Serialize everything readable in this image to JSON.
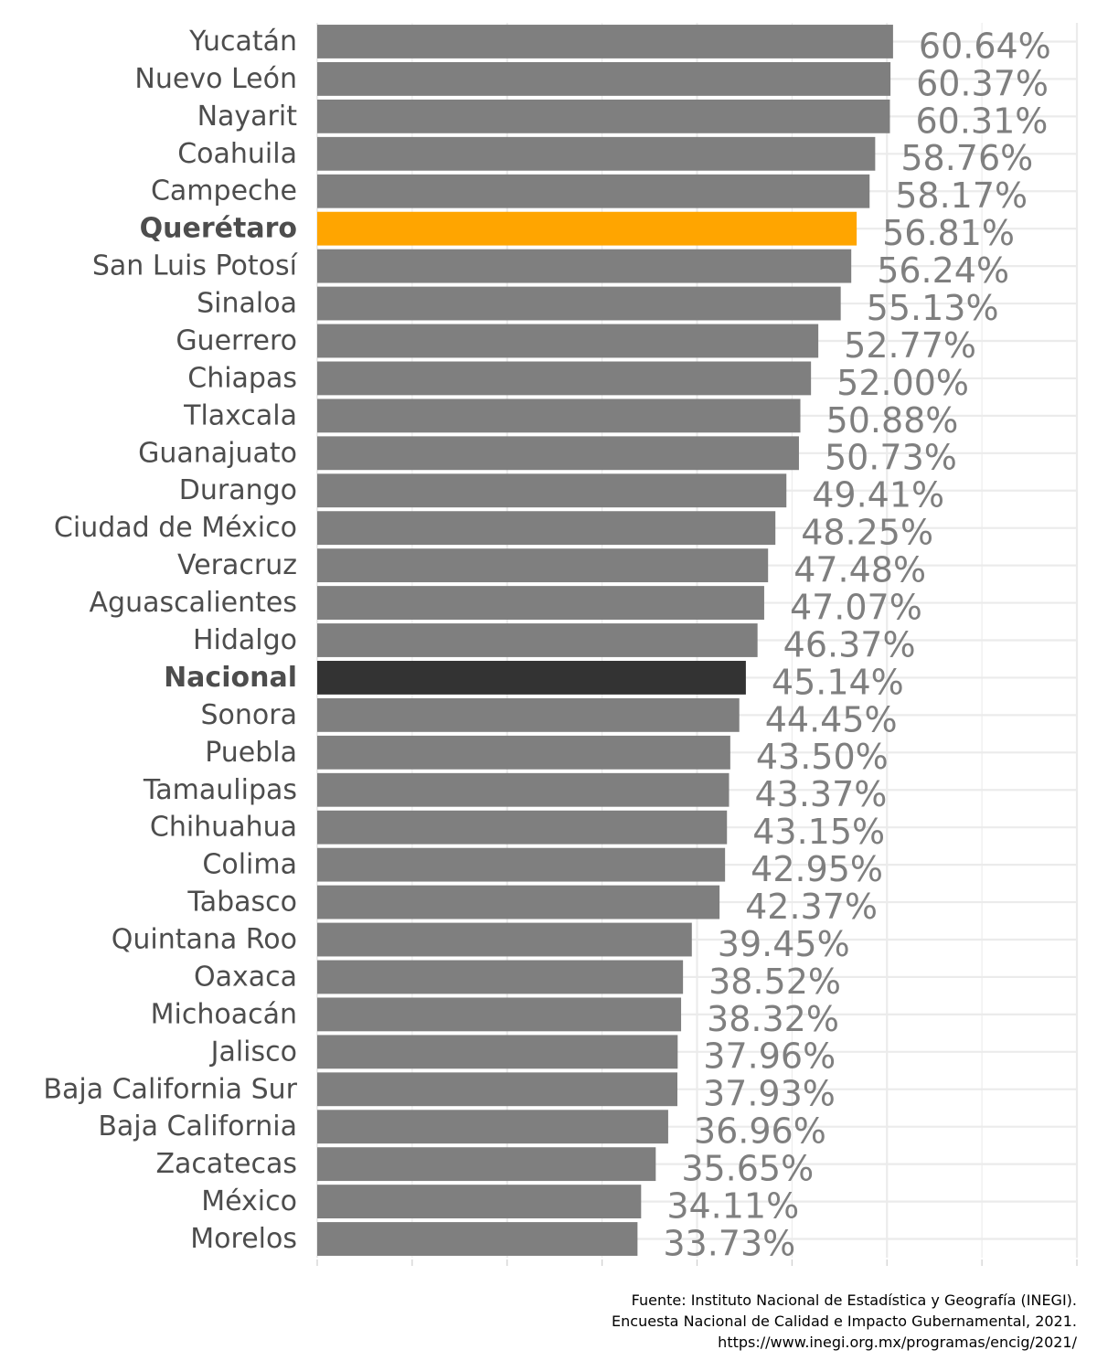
{
  "chart_data": {
    "type": "bar",
    "orientation": "horizontal",
    "value_format": "percent_2dp",
    "xlim": [
      0,
      80
    ],
    "grid": true,
    "categories": [
      "Yucatán",
      "Nuevo León",
      "Nayarit",
      "Coahuila",
      "Campeche",
      "Querétaro",
      "San Luis Potosí",
      "Sinaloa",
      "Guerrero",
      "Chiapas",
      "Tlaxcala",
      "Guanajuato",
      "Durango",
      "Ciudad de México",
      "Veracruz",
      "Aguascalientes",
      "Hidalgo",
      "Nacional",
      "Sonora",
      "Puebla",
      "Tamaulipas",
      "Chihuahua",
      "Colima",
      "Tabasco",
      "Quintana Roo",
      "Oaxaca",
      "Michoacán",
      "Jalisco",
      "Baja California Sur",
      "Baja California",
      "Zacatecas",
      "México",
      "Morelos"
    ],
    "values": [
      60.64,
      60.37,
      60.31,
      58.76,
      58.17,
      56.81,
      56.24,
      55.13,
      52.77,
      52.0,
      50.88,
      50.73,
      49.41,
      48.25,
      47.48,
      47.07,
      46.37,
      45.14,
      44.45,
      43.5,
      43.37,
      43.15,
      42.95,
      42.37,
      39.45,
      38.52,
      38.32,
      37.96,
      37.93,
      36.96,
      35.65,
      34.11,
      33.73
    ],
    "value_labels": [
      "60.64%",
      "60.37%",
      "60.31%",
      "58.76%",
      "58.17%",
      "56.81%",
      "56.24%",
      "55.13%",
      "52.77%",
      "52.00%",
      "50.88%",
      "50.73%",
      "49.41%",
      "48.25%",
      "47.48%",
      "47.07%",
      "46.37%",
      "45.14%",
      "44.45%",
      "43.50%",
      "43.37%",
      "43.15%",
      "42.95%",
      "42.37%",
      "39.45%",
      "38.52%",
      "38.32%",
      "37.96%",
      "37.93%",
      "36.96%",
      "35.65%",
      "34.11%",
      "33.73%"
    ],
    "colors": {
      "default_bar": "#7f7f7f",
      "default_label": "#7f7f7f",
      "default_category": "#4d4d4d",
      "highlight_bar": "#ffa500",
      "highlight_label": "#ffa500",
      "national_bar": "#333333",
      "national_label": "#000000"
    },
    "highlight": "Querétaro",
    "national": "Nacional"
  },
  "caption": {
    "lines": [
      "Fuente: Instituto Nacional de Estadística y Geografía (INEGI).",
      "Encuesta Nacional de Calidad e Impacto Gubernamental, 2021.",
      "https://www.inegi.org.mx/programas/encig/2021/"
    ]
  }
}
